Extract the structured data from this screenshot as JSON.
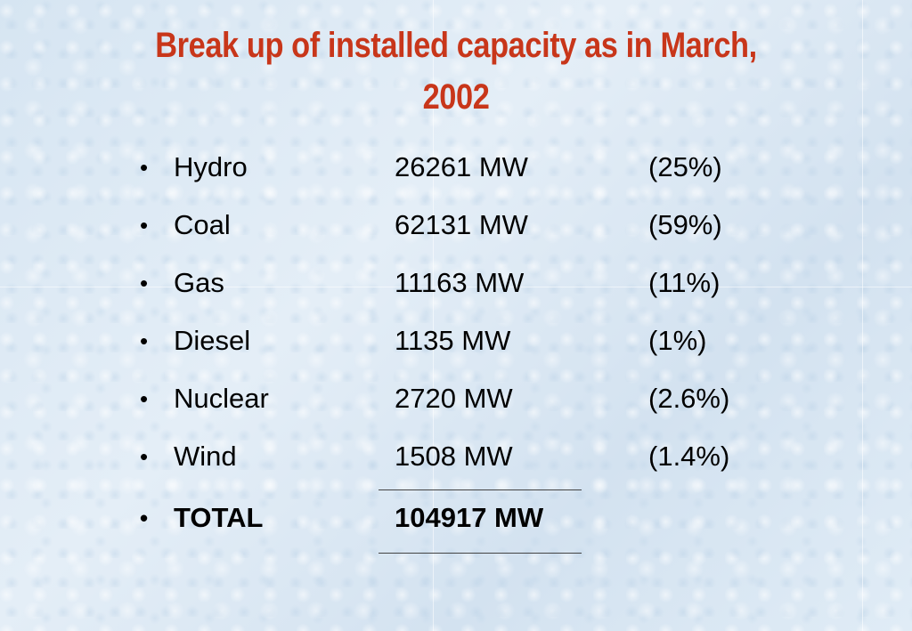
{
  "slide": {
    "title_line1": "Break up of installed capacity as in March,",
    "title_line2": "2002",
    "accent_color": "#c8361a",
    "bullet_glyph": "•"
  },
  "capacity_items": [
    {
      "source": "Hydro",
      "capacity": "26261 MW",
      "share": "(25%)"
    },
    {
      "source": "Coal",
      "capacity": "62131 MW",
      "share": "(59%)"
    },
    {
      "source": "Gas",
      "capacity": "11163 MW",
      "share": "(11%)"
    },
    {
      "source": "Diesel",
      "capacity": "1135 MW",
      "share": "(1%)"
    },
    {
      "source": "Nuclear",
      "capacity": "2720 MW",
      "share": "(2.6%)"
    },
    {
      "source": "Wind",
      "capacity": "1508 MW",
      "share": "(1.4%)"
    }
  ],
  "total": {
    "label": "TOTAL",
    "capacity": "104917 MW"
  }
}
